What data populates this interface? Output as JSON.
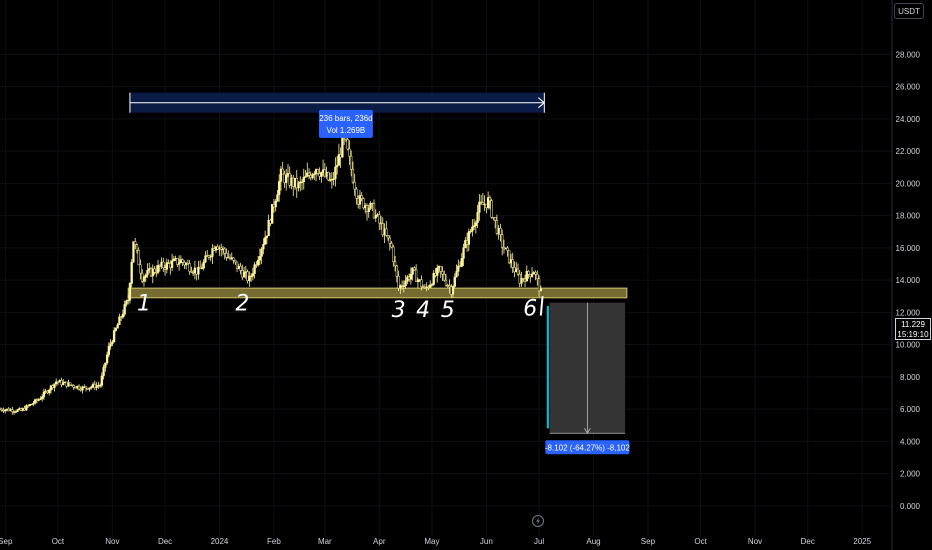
{
  "currency": "USDT",
  "last_price": {
    "value": "11.229",
    "countdown": "15:19:10"
  },
  "chart_data": {
    "type": "candlestick",
    "title": "",
    "yaxis": {
      "ticks": [
        0,
        2,
        4,
        6,
        8,
        10,
        12,
        14,
        16,
        18,
        20,
        22,
        24,
        26,
        28
      ],
      "tick_labels": [
        "0.000",
        "2.000",
        "4.000",
        "6.000",
        "8.000",
        "10.000",
        "12.000",
        "14.000",
        "16.000",
        "18.000",
        "20.000",
        "22.000",
        "24.000",
        "26.000",
        "28.000"
      ],
      "range": [
        -1.5,
        30.5
      ],
      "position": "right"
    },
    "xaxis": {
      "range": [
        "2023-08-29",
        "2025-01-18"
      ],
      "ticks": [
        {
          "date": "2023-09-01",
          "label": "Sep"
        },
        {
          "date": "2023-10-01",
          "label": "Oct"
        },
        {
          "date": "2023-11-01",
          "label": "Nov"
        },
        {
          "date": "2023-12-01",
          "label": "Dec"
        },
        {
          "date": "2024-01-01",
          "label": "2024"
        },
        {
          "date": "2024-02-01",
          "label": "Feb"
        },
        {
          "date": "2024-03-01",
          "label": "Mar"
        },
        {
          "date": "2024-04-01",
          "label": "Apr"
        },
        {
          "date": "2024-05-01",
          "label": "May"
        },
        {
          "date": "2024-06-01",
          "label": "Jun"
        },
        {
          "date": "2024-07-01",
          "label": "Jul"
        },
        {
          "date": "2024-08-01",
          "label": "Aug"
        },
        {
          "date": "2024-09-01",
          "label": "Sep"
        },
        {
          "date": "2024-10-01",
          "label": "Oct"
        },
        {
          "date": "2024-11-01",
          "label": "Nov"
        },
        {
          "date": "2024-12-01",
          "label": "Dec"
        },
        {
          "date": "2025-01-01",
          "label": "2025"
        }
      ]
    },
    "price_path": [
      [
        "2023-08-29",
        6.0
      ],
      [
        "2023-09-10",
        5.9
      ],
      [
        "2023-09-20",
        6.6
      ],
      [
        "2023-09-30",
        7.7
      ],
      [
        "2023-10-08",
        7.5
      ],
      [
        "2023-10-15",
        7.3
      ],
      [
        "2023-10-25",
        7.5
      ],
      [
        "2023-10-30",
        9.8
      ],
      [
        "2023-11-05",
        11.5
      ],
      [
        "2023-11-10",
        12.8
      ],
      [
        "2023-11-13",
        16.5
      ],
      [
        "2023-11-18",
        14.2
      ],
      [
        "2023-11-28",
        14.8
      ],
      [
        "2023-12-10",
        15.2
      ],
      [
        "2023-12-20",
        14.5
      ],
      [
        "2023-12-30",
        16.3
      ],
      [
        "2024-01-08",
        15.2
      ],
      [
        "2024-01-18",
        14.0
      ],
      [
        "2024-01-28",
        17.0
      ],
      [
        "2024-02-05",
        20.5
      ],
      [
        "2024-02-15",
        19.8
      ],
      [
        "2024-02-25",
        21.0
      ],
      [
        "2024-03-05",
        20.0
      ],
      [
        "2024-03-12",
        22.8
      ],
      [
        "2024-03-20",
        19.0
      ],
      [
        "2024-03-28",
        18.4
      ],
      [
        "2024-04-08",
        16.0
      ],
      [
        "2024-04-12",
        13.5
      ],
      [
        "2024-04-20",
        14.5
      ],
      [
        "2024-04-27",
        13.4
      ],
      [
        "2024-05-05",
        14.6
      ],
      [
        "2024-05-12",
        13.4
      ],
      [
        "2024-05-20",
        16.2
      ],
      [
        "2024-05-28",
        18.5
      ],
      [
        "2024-06-02",
        18.9
      ],
      [
        "2024-06-10",
        16.2
      ],
      [
        "2024-06-20",
        14.0
      ],
      [
        "2024-06-28",
        14.6
      ],
      [
        "2024-07-02",
        13.2
      ]
    ],
    "support_zone": {
      "low": 12.9,
      "high": 13.5,
      "from": "2023-11-10",
      "to": "2024-08-20"
    },
    "range_arrow": {
      "from": "2023-11-11",
      "to": "2024-07-04",
      "price": 25.0
    },
    "range_label": {
      "line1": "236 bars, 236d",
      "line2": "Vol 1.269B"
    },
    "measure": {
      "from_price": 12.6,
      "to_price": 4.5,
      "from": "2024-07-07",
      "to": "2024-08-19"
    },
    "measure_label": "-8.102 (-64.27%) -8,102",
    "cyan_drop": {
      "date": "2024-07-06",
      "from_price": 12.4,
      "to_price": 4.8
    },
    "pattern_points": [
      {
        "label": "1",
        "date": "2023-11-19",
        "price": 12.6
      },
      {
        "label": "2",
        "date": "2024-01-14",
        "price": 12.6
      },
      {
        "label": "3",
        "date": "2024-04-12",
        "price": 12.2
      },
      {
        "label": "4",
        "date": "2024-04-26",
        "price": 12.2
      },
      {
        "label": "5",
        "date": "2024-05-10",
        "price": 12.2
      },
      {
        "label": "6",
        "date": "2024-06-26",
        "price": 12.3
      }
    ],
    "colors": {
      "candle": "#fff59d",
      "candle_dark": "#000000",
      "zone": "#8a7f3a",
      "range_bg": "#0b1f4d",
      "range_line": "#ffffff",
      "label_bg": "#2962ff",
      "measure_bg": "#3a3a3a",
      "cyan": "#00bcd4"
    }
  }
}
